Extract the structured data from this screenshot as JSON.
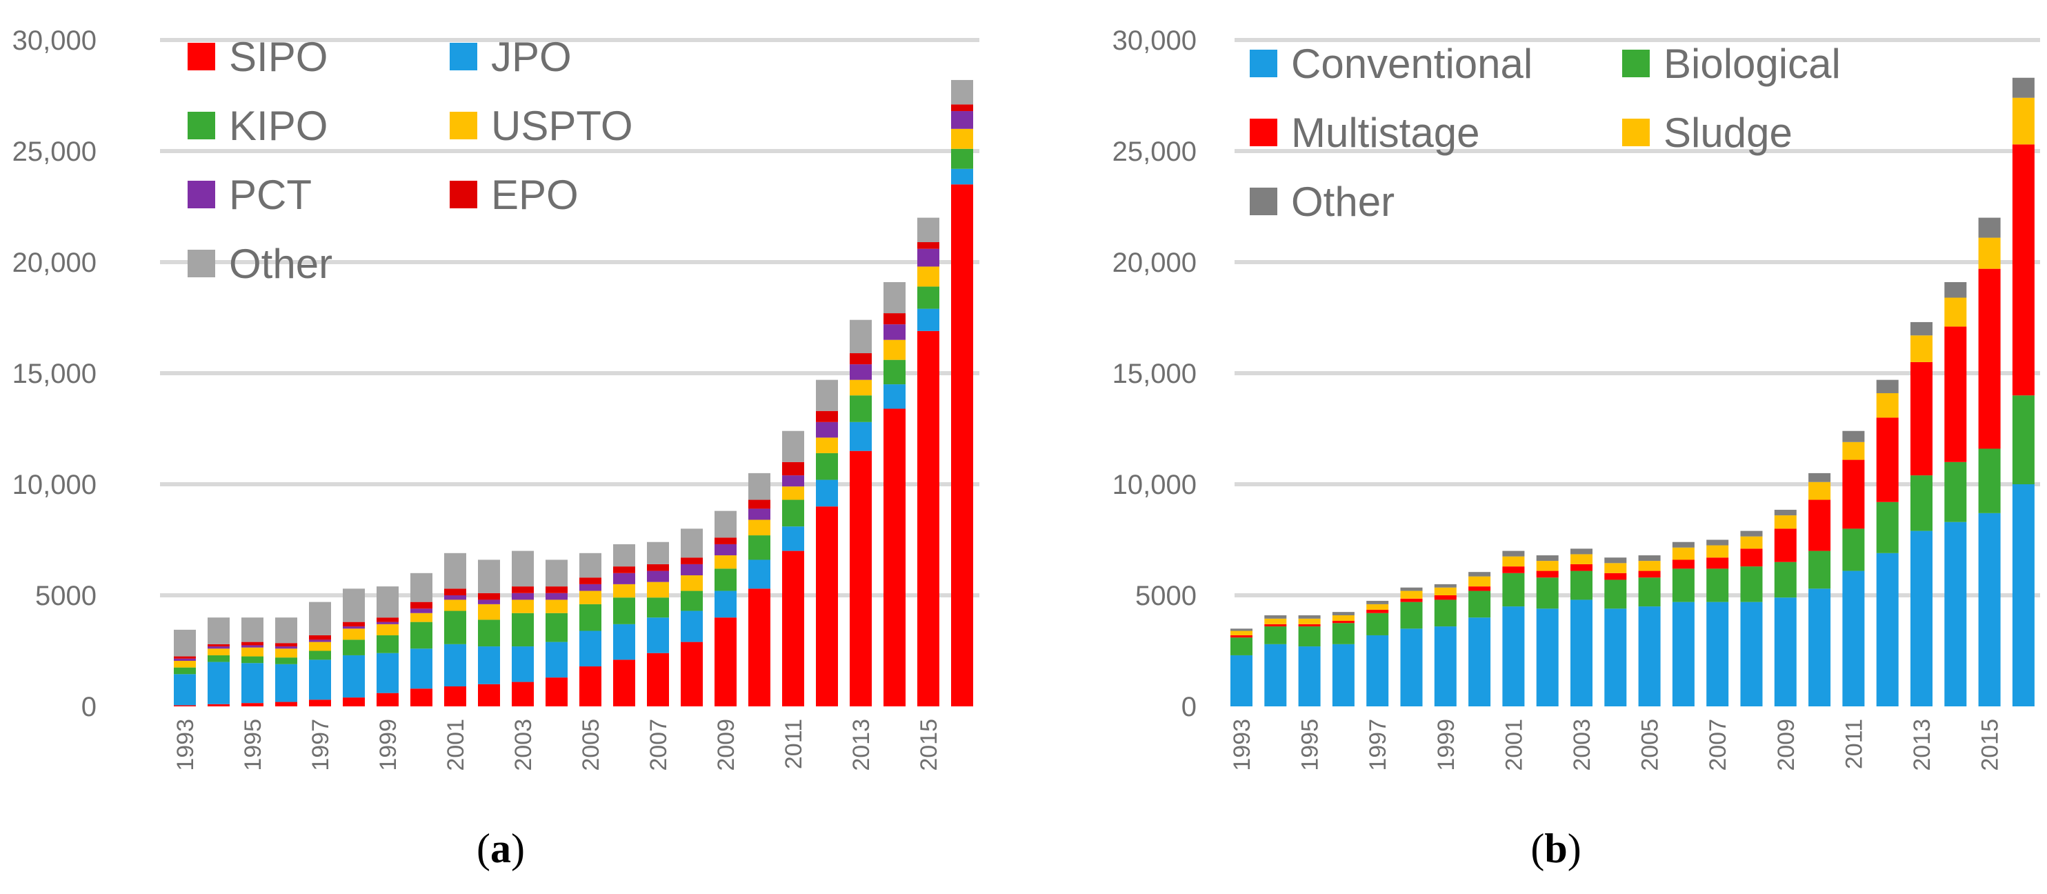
{
  "colors": {
    "SIPO": "#ff0000",
    "JPO": "#1b9ce2",
    "KIPO": "#3aaa35",
    "USPTO": "#ffc000",
    "PCT": "#7f2fa6",
    "EPO": "#e00000",
    "Other": "#a5a5a5",
    "Conventional": "#1b9ce2",
    "Biological": "#3aaa35",
    "Multistage": "#ff0000",
    "Sludge": "#ffc000",
    "OtherB": "#7f7f7f"
  },
  "chart_data": [
    {
      "type": "bar",
      "stacked": true,
      "caption": "(a)",
      "ylim": [
        0,
        30000
      ],
      "yticks": [
        0,
        5000,
        10000,
        15000,
        20000,
        25000,
        30000
      ],
      "ytick_labels": [
        "0",
        "5000",
        "10,000",
        "15,000",
        "20,000",
        "25,000",
        "30,000"
      ],
      "categories": [
        "1993",
        "1994",
        "1995",
        "1996",
        "1997",
        "1998",
        "1999",
        "2000",
        "2001",
        "2002",
        "2003",
        "2004",
        "2005",
        "2006",
        "2007",
        "2008",
        "2009",
        "2010",
        "2011",
        "2012",
        "2013",
        "2014",
        "2015",
        "2016"
      ],
      "xtick_labels": [
        "1993",
        "1995",
        "1997",
        "1999",
        "2001",
        "2003",
        "2005",
        "2007",
        "2009",
        "2011",
        "2013",
        "2015"
      ],
      "legend_position": "top-left",
      "series": [
        {
          "name": "SIPO",
          "color_key": "SIPO",
          "values": [
            50,
            100,
            150,
            200,
            300,
            400,
            600,
            800,
            900,
            1000,
            1100,
            1300,
            1800,
            2100,
            2400,
            2900,
            4000,
            5300,
            7000,
            9000,
            11500,
            13400,
            16900,
            23500
          ]
        },
        {
          "name": "JPO",
          "color_key": "JPO",
          "values": [
            1400,
            1900,
            1800,
            1700,
            1800,
            1900,
            1800,
            1800,
            1900,
            1700,
            1600,
            1600,
            1600,
            1600,
            1600,
            1400,
            1200,
            1300,
            1100,
            1200,
            1300,
            1100,
            1000,
            700
          ]
        },
        {
          "name": "KIPO",
          "color_key": "KIPO",
          "values": [
            300,
            300,
            300,
            300,
            400,
            700,
            800,
            1200,
            1500,
            1200,
            1500,
            1300,
            1200,
            1200,
            900,
            900,
            1000,
            1100,
            1200,
            1200,
            1200,
            1100,
            1000,
            900
          ]
        },
        {
          "name": "USPTO",
          "color_key": "USPTO",
          "values": [
            300,
            300,
            400,
            400,
            400,
            500,
            500,
            400,
            500,
            700,
            600,
            600,
            600,
            600,
            700,
            700,
            600,
            700,
            600,
            700,
            700,
            900,
            900,
            900
          ]
        },
        {
          "name": "PCT",
          "color_key": "PCT",
          "values": [
            100,
            100,
            100,
            100,
            100,
            100,
            100,
            200,
            200,
            200,
            300,
            300,
            300,
            500,
            500,
            500,
            500,
            500,
            500,
            700,
            700,
            700,
            800,
            800
          ]
        },
        {
          "name": "EPO",
          "color_key": "EPO",
          "values": [
            100,
            100,
            150,
            150,
            200,
            200,
            200,
            300,
            300,
            300,
            300,
            300,
            300,
            300,
            300,
            300,
            300,
            400,
            600,
            500,
            500,
            500,
            300,
            300
          ]
        },
        {
          "name": "Other",
          "color_key": "Other",
          "values": [
            1200,
            1200,
            1100,
            1150,
            1500,
            1500,
            1400,
            1300,
            1600,
            1500,
            1600,
            1200,
            1100,
            1000,
            1000,
            1300,
            1200,
            1200,
            1400,
            1400,
            1500,
            1400,
            1100,
            1100
          ]
        }
      ]
    },
    {
      "type": "bar",
      "stacked": true,
      "caption": "(b)",
      "ylim": [
        0,
        30000
      ],
      "yticks": [
        0,
        5000,
        10000,
        15000,
        20000,
        25000,
        30000
      ],
      "ytick_labels": [
        "0",
        "5000",
        "10,000",
        "15,000",
        "20,000",
        "25,000",
        "30,000"
      ],
      "categories": [
        "1993",
        "1994",
        "1995",
        "1996",
        "1997",
        "1998",
        "1999",
        "2000",
        "2001",
        "2002",
        "2003",
        "2004",
        "2005",
        "2006",
        "2007",
        "2008",
        "2009",
        "2010",
        "2011",
        "2012",
        "2013",
        "2014",
        "2015",
        "2016"
      ],
      "xtick_labels": [
        "1993",
        "1995",
        "1997",
        "1999",
        "2001",
        "2003",
        "2005",
        "2007",
        "2009",
        "2011",
        "2013",
        "2015"
      ],
      "legend_position": "top-left",
      "series": [
        {
          "name": "Conventional",
          "color_key": "Conventional",
          "values": [
            2300,
            2800,
            2700,
            2800,
            3200,
            3500,
            3600,
            4000,
            4500,
            4400,
            4800,
            4400,
            4500,
            4700,
            4700,
            4700,
            4900,
            5300,
            6100,
            6900,
            7900,
            8300,
            8700,
            10000
          ]
        },
        {
          "name": "Biological",
          "color_key": "Biological",
          "values": [
            800,
            800,
            900,
            950,
            1000,
            1200,
            1200,
            1200,
            1500,
            1400,
            1300,
            1300,
            1300,
            1500,
            1500,
            1600,
            1600,
            1700,
            1900,
            2300,
            2500,
            2700,
            2900,
            4000
          ]
        },
        {
          "name": "Multistage",
          "color_key": "Multistage",
          "values": [
            100,
            100,
            100,
            100,
            150,
            150,
            200,
            200,
            300,
            300,
            300,
            300,
            300,
            400,
            500,
            800,
            1500,
            2300,
            3100,
            3800,
            5100,
            6100,
            8100,
            11300
          ]
        },
        {
          "name": "Sludge",
          "color_key": "Sludge",
          "values": [
            200,
            250,
            250,
            250,
            250,
            350,
            350,
            450,
            450,
            450,
            450,
            450,
            450,
            550,
            550,
            550,
            600,
            800,
            800,
            1100,
            1200,
            1300,
            1400,
            2100
          ]
        },
        {
          "name": "Other",
          "color_key": "OtherB",
          "values": [
            100,
            150,
            150,
            150,
            150,
            150,
            150,
            200,
            250,
            250,
            250,
            250,
            250,
            250,
            250,
            250,
            250,
            400,
            500,
            600,
            600,
            700,
            900,
            900
          ]
        }
      ]
    }
  ]
}
